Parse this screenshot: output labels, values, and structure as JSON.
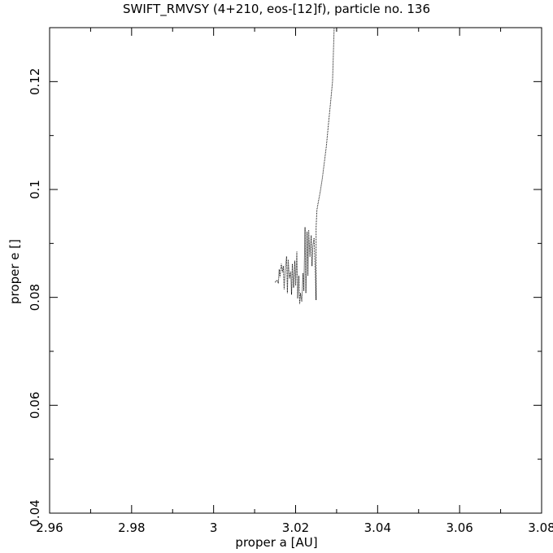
{
  "chart_data": {
    "type": "line",
    "title": "SWIFT_RMVSY (4+210, eos-[12]f), particle no. 136",
    "xlabel": "proper a [AU]",
    "ylabel": "proper e []",
    "xlim": [
      2.96,
      3.08
    ],
    "ylim": [
      0.04,
      0.13
    ],
    "x_ticks": [
      "2.96",
      "2.98",
      "3",
      "3.02",
      "3.04",
      "3.06",
      "3.08"
    ],
    "x_tick_values": [
      2.96,
      2.98,
      3.0,
      3.02,
      3.04,
      3.06,
      3.08
    ],
    "y_ticks": [
      "0.04",
      "0.06",
      "0.08",
      "0.1",
      "0.12"
    ],
    "y_tick_values": [
      0.04,
      0.06,
      0.08,
      0.1,
      0.12
    ],
    "grid": false,
    "series": [
      {
        "style": "dotted",
        "color": "#000000",
        "x": [
          3.015,
          3.0155,
          3.0158,
          3.016,
          3.0162,
          3.0165,
          3.0168,
          3.017,
          3.0172,
          3.0175,
          3.0178,
          3.018,
          3.0182,
          3.0185,
          3.0188,
          3.019,
          3.0192,
          3.0195,
          3.0198,
          3.02,
          3.0203,
          3.0205,
          3.0208,
          3.021,
          3.0212,
          3.0215,
          3.0218,
          3.022,
          3.0223,
          3.0225,
          3.0228,
          3.023,
          3.0232,
          3.0235,
          3.0238,
          3.024,
          3.0242,
          3.0245,
          3.0248,
          3.025,
          3.025,
          3.0252,
          3.0255,
          3.026,
          3.0265,
          3.027,
          3.0275,
          3.028,
          3.0285,
          3.029,
          3.0292,
          3.0294
        ],
        "y": [
          0.0828,
          0.0832,
          0.0826,
          0.0852,
          0.0838,
          0.0862,
          0.0847,
          0.0858,
          0.0815,
          0.0855,
          0.0876,
          0.0808,
          0.087,
          0.0835,
          0.0848,
          0.0805,
          0.0862,
          0.0818,
          0.0868,
          0.0822,
          0.0885,
          0.0798,
          0.084,
          0.0788,
          0.0808,
          0.0792,
          0.0845,
          0.0812,
          0.093,
          0.0808,
          0.0922,
          0.084,
          0.0925,
          0.0875,
          0.0915,
          0.0858,
          0.0895,
          0.091,
          0.085,
          0.0795,
          0.093,
          0.0962,
          0.0975,
          0.0995,
          0.102,
          0.105,
          0.108,
          0.112,
          0.116,
          0.12,
          0.125,
          0.13
        ]
      }
    ]
  }
}
